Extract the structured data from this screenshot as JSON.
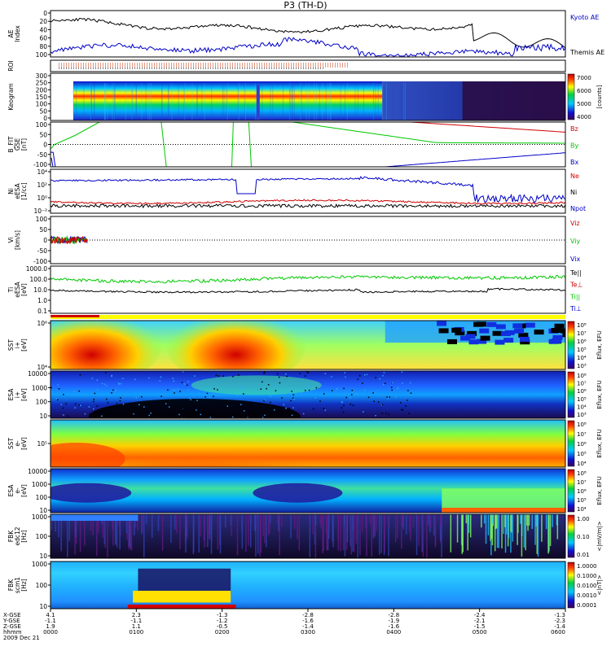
{
  "title": "P3 (TH-D)",
  "date_label": "2009 Dec 21",
  "colors": {
    "red": "#d00000",
    "green": "#00c800",
    "blue": "#0000c8",
    "black": "#000000",
    "purple": "#5a1e8c"
  },
  "chart_data": [
    {
      "id": "ae",
      "type": "line",
      "ylabel": "AE Index",
      "yticks": [
        "0",
        "20",
        "40",
        "60",
        "80",
        "100"
      ],
      "ylim": [
        0,
        100
      ],
      "series": [
        {
          "name": "Kyoto AE",
          "color": "blue"
        },
        {
          "name": "Themis AE",
          "color": "black"
        }
      ]
    },
    {
      "id": "roi",
      "type": "line",
      "ylabel": "ROI"
    },
    {
      "id": "keogram",
      "type": "heatmap",
      "ylabel": "Keogram",
      "yticks": [
        "0",
        "50",
        "100",
        "150",
        "200",
        "250",
        "300"
      ],
      "colorbar": {
        "ticks": [
          "7000",
          "6000",
          "5000",
          "4000"
        ],
        "label": "[counts]"
      }
    },
    {
      "id": "bfit",
      "type": "line",
      "ylabel": "B_FIT GSE [nT]",
      "yticks": [
        "-100",
        "-50",
        "0",
        "50",
        "100"
      ],
      "ylim": [
        -100,
        100
      ],
      "series": [
        {
          "name": "Bz",
          "color": "red"
        },
        {
          "name": "By",
          "color": "green"
        },
        {
          "name": "Bx",
          "color": "blue"
        }
      ]
    },
    {
      "id": "ni",
      "type": "line",
      "ylabel": "Ni eESA [1/cc]",
      "yticks": [
        "10⁴",
        "10²",
        "10⁰",
        "10⁻²"
      ],
      "series": [
        {
          "name": "Ne",
          "color": "red"
        },
        {
          "name": "Ni",
          "color": "black"
        },
        {
          "name": "Npot",
          "color": "blue"
        }
      ]
    },
    {
      "id": "vi",
      "type": "line",
      "ylabel": "Vi [km/s]",
      "yticks": [
        "100",
        "50",
        "0",
        "-50",
        "-100"
      ],
      "ylim": [
        -100,
        100
      ],
      "series": [
        {
          "name": "Viz",
          "color": "red"
        },
        {
          "name": "Viy",
          "color": "green"
        },
        {
          "name": "Vix",
          "color": "blue"
        }
      ]
    },
    {
      "id": "ti",
      "type": "line",
      "ylabel": "Ti eESA [eV]",
      "yticks": [
        "1000.0",
        "100.0",
        "10.0",
        "1.0",
        "0.1"
      ],
      "series": [
        {
          "name": "Te||",
          "color": "black"
        },
        {
          "name": "Te⊥",
          "color": "red"
        },
        {
          "name": "Ti||",
          "color": "green"
        },
        {
          "name": "Ti⊥",
          "color": "blue"
        }
      ]
    },
    {
      "id": "sst_i",
      "type": "heatmap",
      "ylabel": "SST i+ [eV]",
      "yticks": [
        "10⁶",
        "10⁴"
      ],
      "colorbar": {
        "ticks": [
          "10⁸",
          "10⁷",
          "10⁶",
          "10⁵",
          "10⁴",
          "10³"
        ],
        "label": "Eflux, EFU"
      }
    },
    {
      "id": "esa_i",
      "type": "heatmap",
      "ylabel": "ESA i+ [eV]",
      "yticks": [
        "10000",
        "1000",
        "100",
        "10"
      ],
      "colorbar": {
        "ticks": [
          "10⁸",
          "10⁷",
          "10⁶",
          "10⁵",
          "10⁴",
          "10³"
        ],
        "label": "Eflux, EFU"
      }
    },
    {
      "id": "sst_e",
      "type": "heatmap",
      "ylabel": "SST e- [eV]",
      "yticks": [
        "10⁵"
      ],
      "colorbar": {
        "ticks": [
          "10⁸",
          "10⁷",
          "10⁶",
          "10⁵",
          "10⁴"
        ],
        "label": "Eflux, EFU"
      }
    },
    {
      "id": "esa_e",
      "type": "heatmap",
      "ylabel": "ESA e- [eV]",
      "yticks": [
        "10000",
        "1000",
        "100",
        "10"
      ],
      "colorbar": {
        "ticks": [
          "10⁸",
          "10⁷",
          "10⁶",
          "10⁵",
          "10⁴"
        ],
        "label": "Eflux, EFU"
      }
    },
    {
      "id": "fbk_e",
      "type": "heatmap",
      "ylabel": "FBK edc12 [Hz]",
      "yticks": [
        "1000",
        "100",
        "10"
      ],
      "colorbar": {
        "ticks": [
          "1.00",
          "0.10",
          "0.01"
        ],
        "label": "<|mV/m|>"
      }
    },
    {
      "id": "fbk_b",
      "type": "heatmap",
      "ylabel": "FBK scm1 [Hz]",
      "yticks": [
        "1000",
        "100",
        "10"
      ],
      "colorbar": {
        "ticks": [
          "1.0000",
          "0.1000",
          "0.0100",
          "0.0010",
          "0.0001"
        ],
        "label": "<|nT|>"
      }
    }
  ],
  "x_axis": {
    "row_labels": [
      "X-GSE",
      "Y-GSE",
      "Z-GSE",
      "hhmm"
    ],
    "columns": [
      {
        "x": "4.1",
        "y": "-1.1",
        "z": "1.9",
        "t": "0000"
      },
      {
        "x": "2.3",
        "y": "-1.1",
        "z": "1.1",
        "t": "0100"
      },
      {
        "x": "-1.3",
        "y": "-1.2",
        "z": "-0.5",
        "t": "0200"
      },
      {
        "x": "-2.8",
        "y": "-1.6",
        "z": "-1.4",
        "t": "0300"
      },
      {
        "x": "-2.8",
        "y": "-1.9",
        "z": "-1.6",
        "t": "0400"
      },
      {
        "x": "-2.4",
        "y": "-2.1",
        "z": "-1.5",
        "t": "0500"
      },
      {
        "x": "-1.3",
        "y": "-2.3",
        "z": "-1.4",
        "t": "0600"
      }
    ]
  }
}
